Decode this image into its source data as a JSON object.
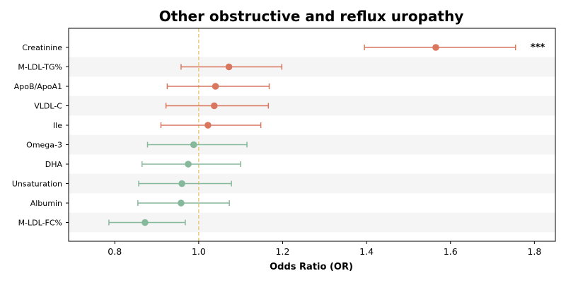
{
  "chart_data": {
    "type": "scatter",
    "title": "Other obstructive and reflux uropathy",
    "xlabel": "Odds Ratio (OR)",
    "ylabel": "",
    "xlim": [
      0.69,
      1.85
    ],
    "xticks": [
      "0.8",
      "1.0",
      "1.2",
      "1.4",
      "1.6",
      "1.8"
    ],
    "reference_line": 1.0,
    "grid": false,
    "alternating_row_shading": true,
    "colors": {
      "risk": "#d9775e",
      "protective": "#86b89c",
      "reference": "#f0c97a",
      "row_shade": "#f5f5f5"
    },
    "rows": [
      {
        "label": "Creatinine",
        "or": 1.565,
        "lower": 1.395,
        "upper": 1.755,
        "group": "risk",
        "annotation": "***"
      },
      {
        "label": "M-LDL-TG%",
        "or": 1.072,
        "lower": 0.958,
        "upper": 1.198,
        "group": "risk",
        "annotation": ""
      },
      {
        "label": "ApoB/ApoA1",
        "or": 1.04,
        "lower": 0.925,
        "upper": 1.168,
        "group": "risk",
        "annotation": ""
      },
      {
        "label": "VLDL-C",
        "or": 1.037,
        "lower": 0.922,
        "upper": 1.166,
        "group": "risk",
        "annotation": ""
      },
      {
        "label": "Ile",
        "or": 1.022,
        "lower": 0.91,
        "upper": 1.148,
        "group": "risk",
        "annotation": ""
      },
      {
        "label": "Omega-3",
        "or": 0.988,
        "lower": 0.878,
        "upper": 1.115,
        "group": "protective",
        "annotation": ""
      },
      {
        "label": "DHA",
        "or": 0.975,
        "lower": 0.865,
        "upper": 1.1,
        "group": "protective",
        "annotation": ""
      },
      {
        "label": "Unsaturation",
        "or": 0.96,
        "lower": 0.857,
        "upper": 1.078,
        "group": "protective",
        "annotation": ""
      },
      {
        "label": "Albumin",
        "or": 0.958,
        "lower": 0.855,
        "upper": 1.073,
        "group": "protective",
        "annotation": ""
      },
      {
        "label": "M-LDL-FC%",
        "or": 0.872,
        "lower": 0.786,
        "upper": 0.968,
        "group": "protective",
        "annotation": ""
      }
    ]
  }
}
